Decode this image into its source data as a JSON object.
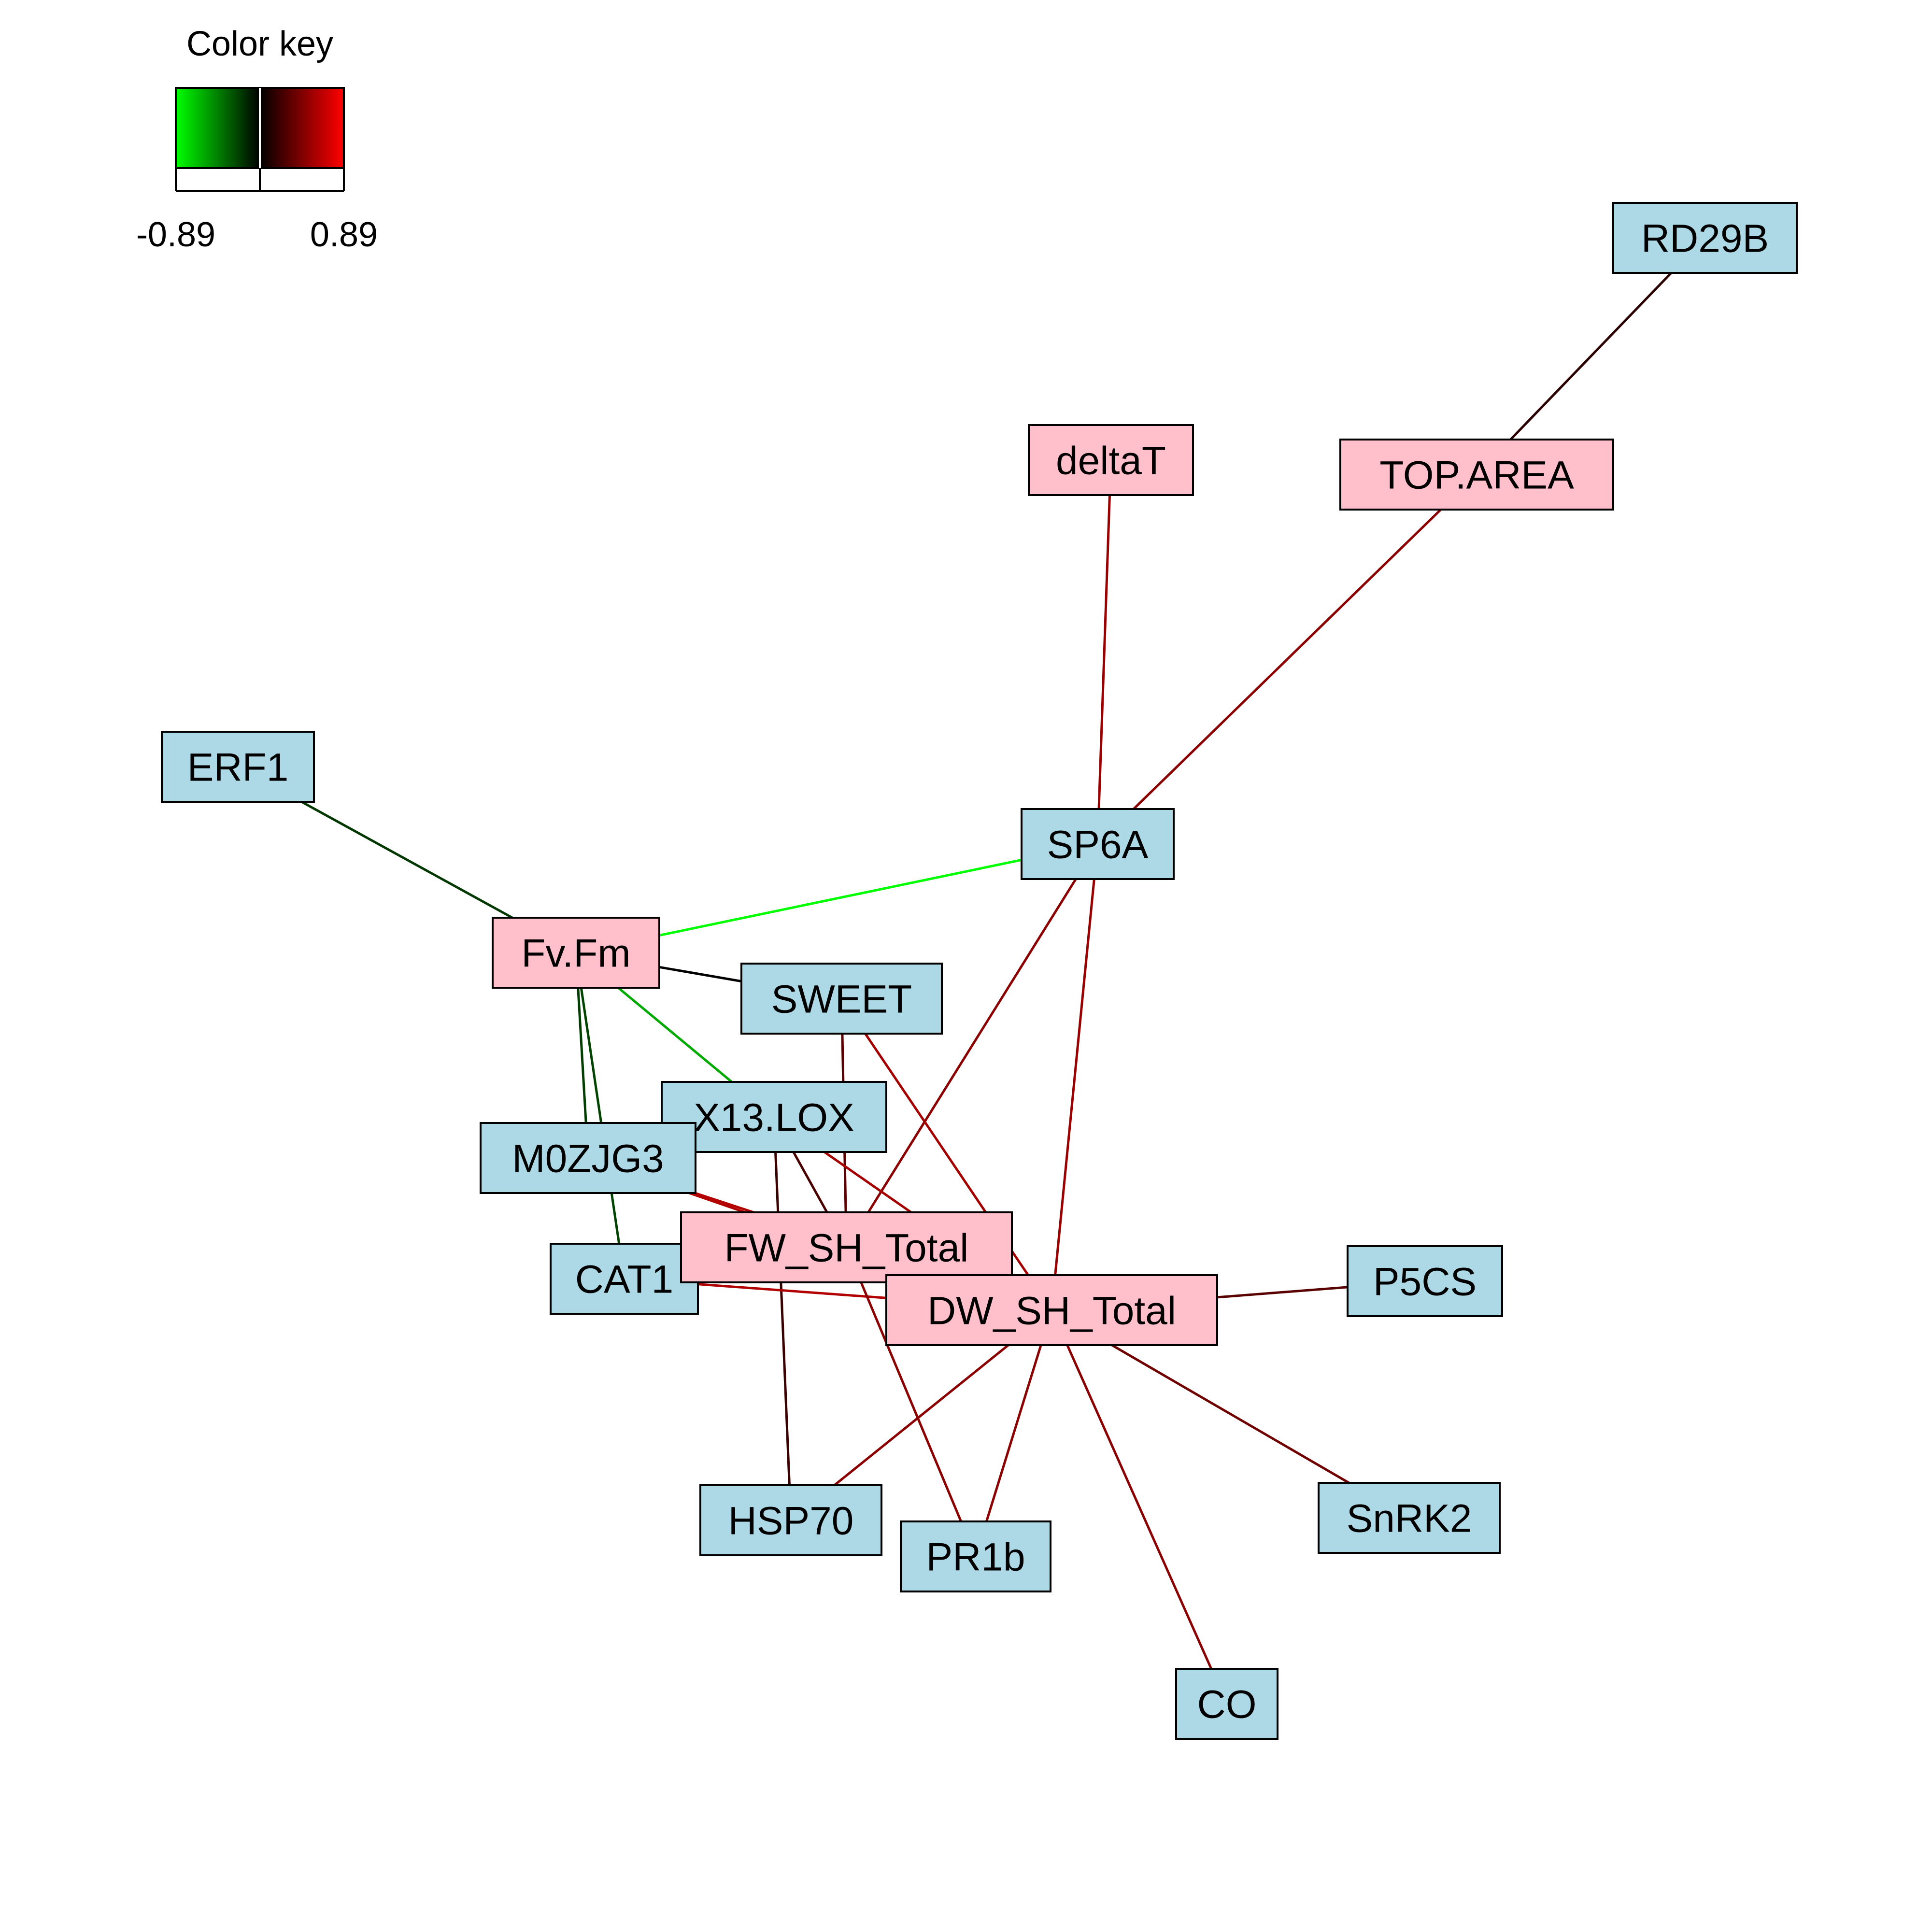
{
  "color_key": {
    "title": "Color key",
    "min_label": "-0.89",
    "max_label": "0.89",
    "colors": {
      "negative": "#00ff00",
      "zero": "#000000",
      "positive": "#ff0000"
    }
  },
  "node_colors": {
    "gene": "#add8e6",
    "trait": "#ffc0cb"
  },
  "nodes": [
    {
      "id": "RD29B",
      "label": "RD29B",
      "kind": "gene"
    },
    {
      "id": "deltaT",
      "label": "deltaT",
      "kind": "trait"
    },
    {
      "id": "TOP.AREA",
      "label": "TOP.AREA",
      "kind": "trait"
    },
    {
      "id": "ERF1",
      "label": "ERF1",
      "kind": "gene"
    },
    {
      "id": "SP6A",
      "label": "SP6A",
      "kind": "gene"
    },
    {
      "id": "Fv.Fm",
      "label": "Fv.Fm",
      "kind": "trait"
    },
    {
      "id": "SWEET",
      "label": "SWEET",
      "kind": "gene"
    },
    {
      "id": "X13.LOX",
      "label": "X13.LOX",
      "kind": "gene"
    },
    {
      "id": "M0ZJG3",
      "label": "M0ZJG3",
      "kind": "gene"
    },
    {
      "id": "CAT1",
      "label": "CAT1",
      "kind": "gene"
    },
    {
      "id": "FW_SH_Total",
      "label": "FW_SH_Total",
      "kind": "trait"
    },
    {
      "id": "DW_SH_Total",
      "label": "DW_SH_Total",
      "kind": "trait"
    },
    {
      "id": "P5CS",
      "label": "P5CS",
      "kind": "gene"
    },
    {
      "id": "HSP70",
      "label": "HSP70",
      "kind": "gene"
    },
    {
      "id": "PR1b",
      "label": "PR1b",
      "kind": "gene"
    },
    {
      "id": "SnRK2",
      "label": "SnRK2",
      "kind": "gene"
    },
    {
      "id": "CO",
      "label": "CO",
      "kind": "gene"
    }
  ],
  "edges": [
    {
      "from": "RD29B",
      "to": "TOP.AREA",
      "color": "#2b0000"
    },
    {
      "from": "TOP.AREA",
      "to": "SP6A",
      "color": "#8b0000"
    },
    {
      "from": "deltaT",
      "to": "SP6A",
      "color": "#9b0000"
    },
    {
      "from": "ERF1",
      "to": "Fv.Fm",
      "color": "#003800"
    },
    {
      "from": "SP6A",
      "to": "Fv.Fm",
      "color": "#00ff00"
    },
    {
      "from": "SP6A",
      "to": "FW_SH_Total",
      "color": "#8b0000"
    },
    {
      "from": "SP6A",
      "to": "DW_SH_Total",
      "color": "#9b0000"
    },
    {
      "from": "Fv.Fm",
      "to": "SWEET",
      "color": "#000000"
    },
    {
      "from": "Fv.Fm",
      "to": "X13.LOX",
      "color": "#00aa00"
    },
    {
      "from": "Fv.Fm",
      "to": "M0ZJG3",
      "color": "#003f00"
    },
    {
      "from": "Fv.Fm",
      "to": "CAT1",
      "color": "#004400"
    },
    {
      "from": "SWEET",
      "to": "FW_SH_Total",
      "color": "#5a0000"
    },
    {
      "from": "SWEET",
      "to": "DW_SH_Total",
      "color": "#a40000"
    },
    {
      "from": "X13.LOX",
      "to": "FW_SH_Total",
      "color": "#4a0000"
    },
    {
      "from": "X13.LOX",
      "to": "DW_SH_Total",
      "color": "#a40000"
    },
    {
      "from": "X13.LOX",
      "to": "HSP70",
      "color": "#3a0000"
    },
    {
      "from": "M0ZJG3",
      "to": "FW_SH_Total",
      "color": "#b20000"
    },
    {
      "from": "M0ZJG3",
      "to": "DW_SH_Total",
      "color": "#b20000"
    },
    {
      "from": "CAT1",
      "to": "DW_SH_Total",
      "color": "#b20000"
    },
    {
      "from": "DW_SH_Total",
      "to": "P5CS",
      "color": "#5a0000"
    },
    {
      "from": "DW_SH_Total",
      "to": "HSP70",
      "color": "#8b0000"
    },
    {
      "from": "DW_SH_Total",
      "to": "PR1b",
      "color": "#8b0000"
    },
    {
      "from": "DW_SH_Total",
      "to": "SnRK2",
      "color": "#700000"
    },
    {
      "from": "DW_SH_Total",
      "to": "CO",
      "color": "#8b0000"
    },
    {
      "from": "FW_SH_Total",
      "to": "PR1b",
      "color": "#8b0000"
    }
  ]
}
